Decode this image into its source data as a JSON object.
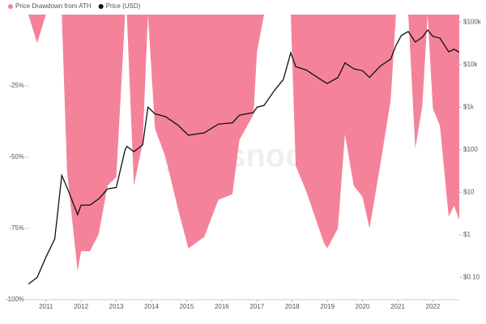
{
  "chart_data": {
    "type": "area-line",
    "watermark": "glassnode",
    "legend_position": "top-left",
    "x": [
      2010.5,
      2010.75,
      2011.0,
      2011.25,
      2011.45,
      2011.6,
      2011.9,
      2012.0,
      2012.25,
      2012.5,
      2012.75,
      2013.0,
      2013.25,
      2013.3,
      2013.5,
      2013.75,
      2013.9,
      2014.1,
      2014.4,
      2014.75,
      2015.05,
      2015.5,
      2015.9,
      2016.3,
      2016.5,
      2016.9,
      2017.0,
      2017.2,
      2017.5,
      2017.75,
      2017.96,
      2018.1,
      2018.4,
      2018.9,
      2019.0,
      2019.3,
      2019.5,
      2019.75,
      2020.0,
      2020.2,
      2020.5,
      2020.8,
      2020.95,
      2021.1,
      2021.3,
      2021.5,
      2021.7,
      2021.85,
      2022.0,
      2022.2,
      2022.45,
      2022.6,
      2022.75
    ],
    "series": [
      {
        "name": "Price Drawdown from ATH",
        "color": "#f4839a",
        "kind": "area",
        "values": [
          0,
          -10,
          0,
          0,
          0,
          -55,
          -90,
          -83,
          -83,
          -77,
          -60,
          -57,
          0,
          0,
          -60,
          -45,
          0,
          -40,
          -50,
          -68,
          -82,
          -78,
          -65,
          -63,
          -44,
          -35,
          -13,
          0,
          0,
          0,
          0,
          -53,
          -62,
          -80,
          -82,
          -75,
          -42,
          -60,
          -64,
          -75,
          -53,
          -30,
          0,
          0,
          0,
          -47,
          -32,
          0,
          -33,
          -39,
          -71,
          -67,
          -72
        ]
      },
      {
        "name": "Price (USD)",
        "color": "#111111",
        "kind": "line",
        "axis": "y2",
        "values": [
          0.07,
          0.1,
          0.3,
          0.8,
          25,
          13,
          3,
          5,
          5,
          7,
          12,
          13,
          100,
          120,
          90,
          130,
          1000,
          700,
          600,
          380,
          220,
          250,
          400,
          430,
          650,
          750,
          1000,
          1100,
          2500,
          4500,
          19000,
          9000,
          7500,
          4000,
          3600,
          5000,
          11000,
          8000,
          7200,
          5000,
          9200,
          13500,
          28000,
          48000,
          60000,
          34000,
          44000,
          65000,
          46000,
          42000,
          20000,
          23000,
          19500
        ]
      }
    ],
    "xlim": [
      2010.5,
      2022.75
    ],
    "xticks": [
      2011,
      2012,
      2013,
      2014,
      2015,
      2016,
      2017,
      2018,
      2019,
      2020,
      2021,
      2022
    ],
    "ylim": [
      -100,
      0
    ],
    "yticks": [
      {
        "value": -25,
        "label": "-25%"
      },
      {
        "value": -50,
        "label": "-50%"
      },
      {
        "value": -75,
        "label": "-75%"
      },
      {
        "value": -100,
        "label": "-100%"
      }
    ],
    "y2lim": [
      0.03,
      150000
    ],
    "y2scale": "log",
    "y2ticks": [
      {
        "value": 0.1,
        "label": "$0.10"
      },
      {
        "value": 1,
        "label": "$1"
      },
      {
        "value": 10,
        "label": "$10"
      },
      {
        "value": 100,
        "label": "$100"
      },
      {
        "value": 1000,
        "label": "$1k"
      },
      {
        "value": 10000,
        "label": "$10k"
      },
      {
        "value": 100000,
        "label": "$100k"
      }
    ]
  }
}
